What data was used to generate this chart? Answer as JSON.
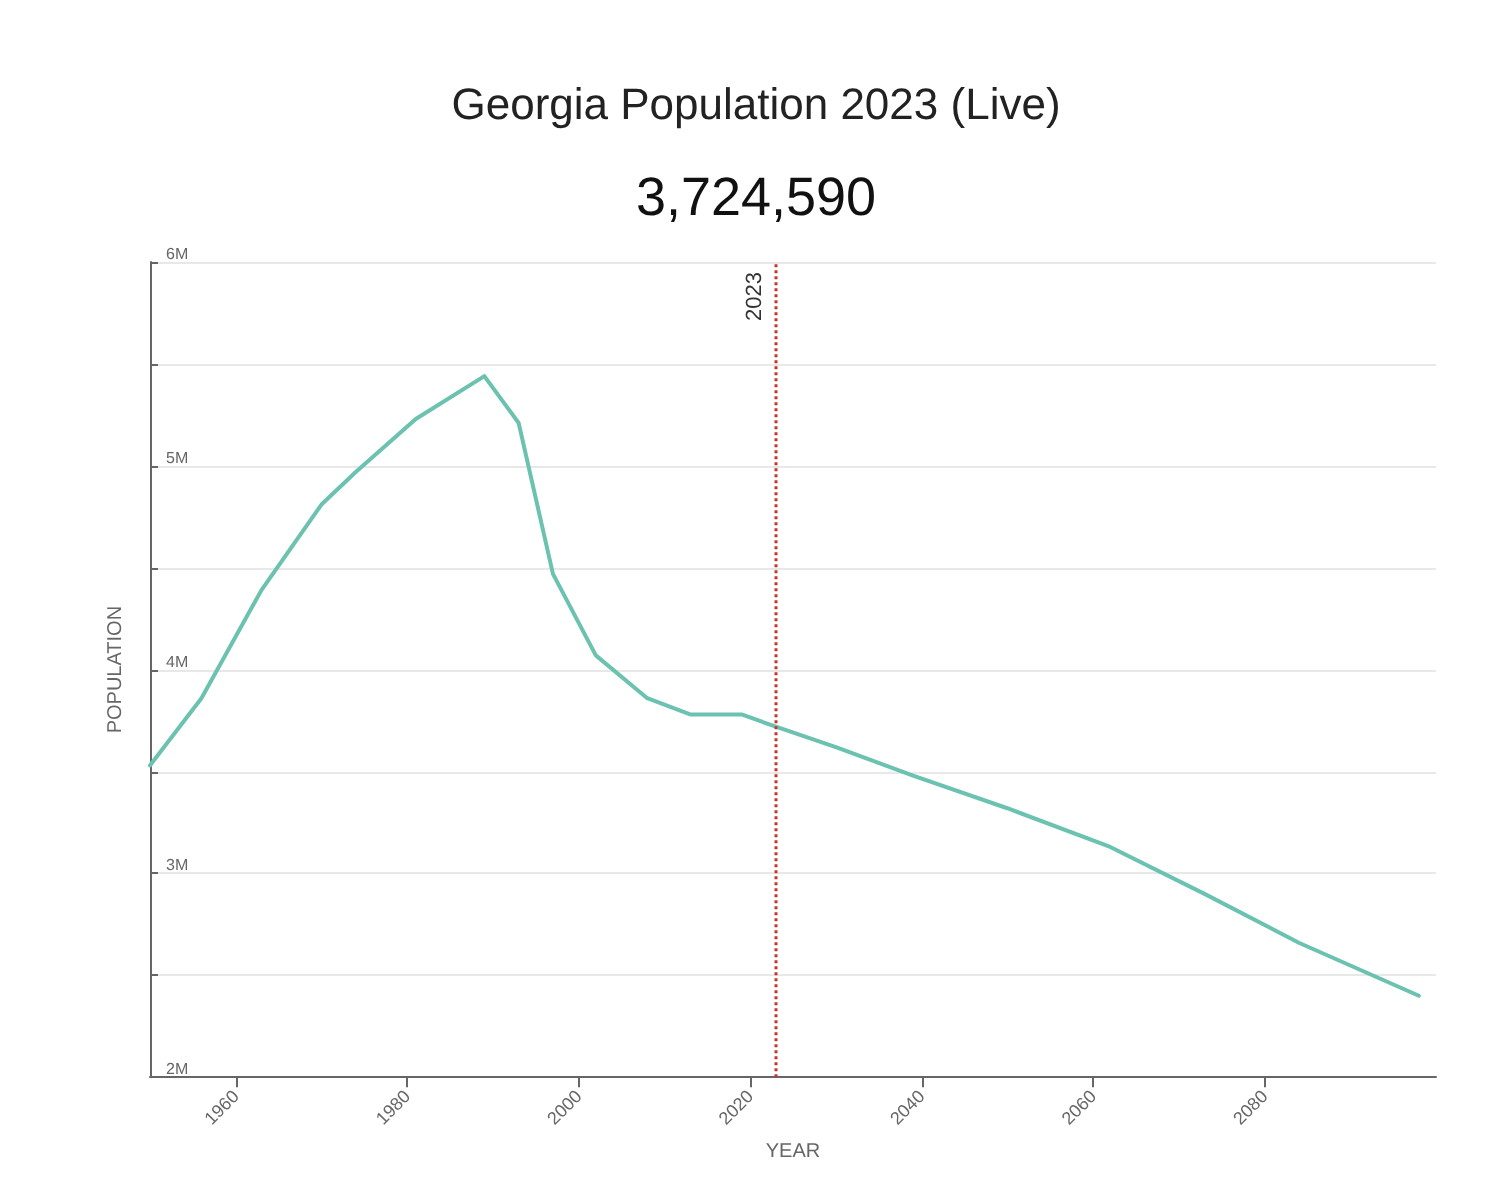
{
  "chart_data": {
    "type": "line",
    "title": "Georgia Population 2023 (Live)",
    "subtitle": "3,724,590",
    "xlabel": "YEAR",
    "ylabel": "POPULATION",
    "x": [
      1950,
      1956,
      1963,
      1970,
      1974,
      1981,
      1989,
      1993,
      1997,
      2002,
      2008,
      2013,
      2019,
      2023,
      2030,
      2039,
      2050,
      2062,
      2073,
      2084,
      2098
    ],
    "series": [
      {
        "color": "#6cc2b0",
        "values": [
          3.53,
          3.86,
          4.39,
          4.81,
          4.97,
          5.23,
          5.44,
          5.21,
          4.47,
          4.07,
          3.86,
          3.78,
          3.78,
          3.72,
          3.62,
          3.48,
          3.32,
          3.13,
          2.9,
          2.66,
          2.4
        ]
      }
    ],
    "xlim": [
      1950,
      2100
    ],
    "xticks": [
      1960,
      1980,
      2000,
      2020,
      2040,
      2060,
      2080
    ],
    "ylim": [
      2,
      6
    ],
    "yticks": [
      {
        "value": 2,
        "label": "2M"
      },
      {
        "value": 2.5,
        "label": null
      },
      {
        "value": 3,
        "label": "3M"
      },
      {
        "value": 3.5,
        "label": null
      },
      {
        "value": 4,
        "label": "4M"
      },
      {
        "value": 4.5,
        "label": null
      },
      {
        "value": 5,
        "label": "5M"
      },
      {
        "value": 5.5,
        "label": null
      },
      {
        "value": 6,
        "label": "6M"
      }
    ],
    "ref_lines": [
      {
        "axis": "x",
        "value": 2023,
        "label": "2023",
        "color": "#c0392b",
        "line_style": "dotted"
      }
    ],
    "grid": "y",
    "marker": "none",
    "line_style": "solid"
  }
}
